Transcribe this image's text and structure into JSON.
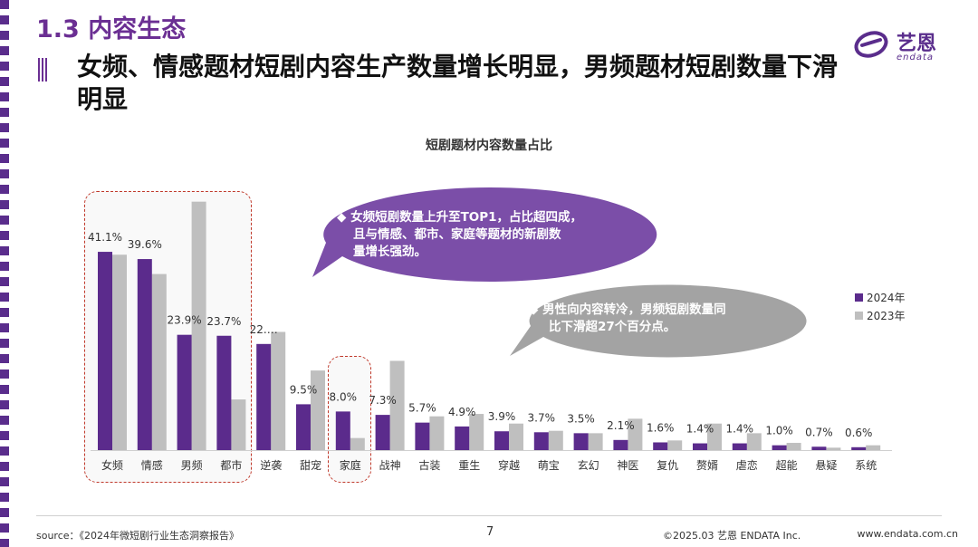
{
  "section": "1.3 内容生态",
  "headline": "女频、情感题材短剧内容生产数量增长明显，男频题材短剧数量下滑明显",
  "logo": {
    "cn": "艺恩",
    "en": "endata"
  },
  "callout1": {
    "line1": "◆  女频短剧数量上升至TOP1，占比超四成，",
    "line2": "且与情感、都市、家庭等题材的新剧数",
    "line3": "量增长强劲。"
  },
  "callout2": {
    "line1": "◆  男性向内容转冷，男频短剧数量同",
    "line2": "比下滑超27个百分点。"
  },
  "footer": {
    "source": "source：《2024年微短剧行业生态洞察报告》",
    "page": "7",
    "copyright": "©2025.03  艺恩 ENDATA Inc.",
    "website": "www.endata.com.cn"
  },
  "colors": {
    "accent": "#6b2f93",
    "bar2024": "#5b2b8c",
    "bar2023": "#bfbfbf",
    "callout1": "#7b4ea8",
    "callout2": "#a3a3a3",
    "highlight": "#c0392b"
  },
  "chart_data": {
    "type": "bar",
    "title": "短剧题材内容数量占比",
    "categories": [
      "女频",
      "情感",
      "男频",
      "都市",
      "逆袭",
      "甜宠",
      "家庭",
      "战神",
      "古装",
      "重生",
      "穿越",
      "萌宝",
      "玄幻",
      "神医",
      "复仇",
      "赘婿",
      "虐恋",
      "超能",
      "悬疑",
      "系统"
    ],
    "series": [
      {
        "name": "2024年",
        "values": [
          41.1,
          39.6,
          23.9,
          23.7,
          22.0,
          9.5,
          8.0,
          7.3,
          5.7,
          4.9,
          3.9,
          3.7,
          3.5,
          2.1,
          1.6,
          1.4,
          1.4,
          1.0,
          0.7,
          0.6
        ]
      },
      {
        "name": "2023年",
        "values": [
          40.5,
          36.5,
          51.5,
          10.5,
          24.5,
          16.5,
          2.5,
          18.5,
          7.0,
          7.5,
          5.5,
          4.0,
          3.5,
          6.5,
          2.0,
          5.5,
          3.5,
          1.5,
          0.5,
          1.0
        ]
      }
    ],
    "data_labels": [
      "41.1%",
      "39.6%",
      "23.9%",
      "23.7%",
      "22.…",
      "9.5%",
      "8.0%",
      "7.3%",
      "5.7%",
      "4.9%",
      "3.9%",
      "3.7%",
      "3.5%",
      "2.1%",
      "1.6%",
      "1.4%",
      "1.4%",
      "1.0%",
      "0.7%",
      "0.6%"
    ],
    "ylim": [
      0,
      52
    ],
    "xlabel": "",
    "ylabel": "",
    "grid": false,
    "legend": "right"
  }
}
